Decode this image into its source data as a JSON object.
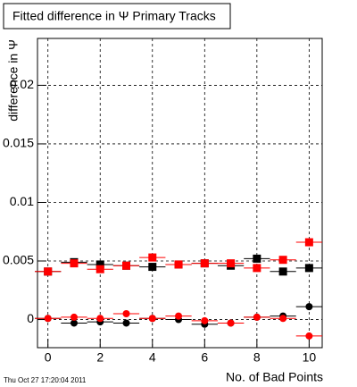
{
  "chart_data": {
    "type": "scatter",
    "title": "Fitted difference in Ψ  Primary Tracks",
    "x_label": "No. of Bad Points",
    "y_label": "difference in Ψ",
    "timestamp": "Thu Oct 27 17:20:04 2011",
    "x": [
      0,
      1,
      2,
      3,
      4,
      5,
      6,
      7,
      8,
      9,
      10
    ],
    "x_error": 0.5,
    "xlim": [
      -0.4,
      10.5
    ],
    "xticks": [
      0,
      2,
      4,
      6,
      8,
      10
    ],
    "ylim": [
      -0.0024,
      0.024
    ],
    "yticks": [
      0,
      0.005,
      0.01,
      0.015,
      0.02
    ],
    "grid": true,
    "series": [
      {
        "color": "#000000",
        "marker": "square",
        "values": [
          0.0041,
          0.0049,
          0.0047,
          0.0046,
          0.0045,
          0.0047,
          0.0048,
          0.0046,
          0.0052,
          0.0041,
          0.0044
        ]
      },
      {
        "color": "#ff0000",
        "marker": "square",
        "values": [
          0.0041,
          0.0048,
          0.0043,
          0.0046,
          0.0053,
          0.0047,
          0.0048,
          0.0048,
          0.0044,
          0.0051,
          0.0066
        ]
      },
      {
        "color": "#000000",
        "marker": "circle",
        "values": [
          0.0001,
          -0.0003,
          -0.0002,
          -0.0003,
          0.0001,
          0.0,
          -0.0004,
          -0.0003,
          0.0002,
          0.0003,
          0.0011
        ]
      },
      {
        "color": "#ff0000",
        "marker": "circle",
        "values": [
          0.0001,
          0.0002,
          0.0001,
          0.0005,
          0.0001,
          0.0003,
          -0.0001,
          -0.0003,
          0.0002,
          0.0001,
          -0.0014
        ]
      }
    ]
  }
}
